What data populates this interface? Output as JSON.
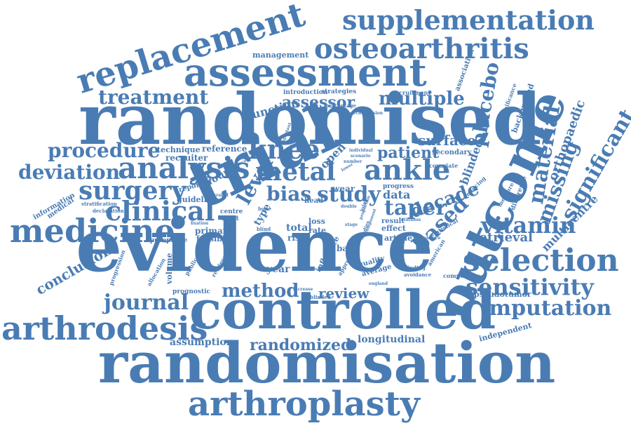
{
  "colors": {
    "word": "#4a7cb4",
    "background": "#ffffff"
  },
  "words": [
    "randomised",
    "evidence",
    "trial",
    "controlled",
    "randomisation",
    "outcome",
    "assessment",
    "replacement",
    "arthroplasty",
    "supplementation",
    "osteoarthritis",
    "arthrodesis",
    "medicine",
    "analysis",
    "metal",
    "ankle",
    "knee",
    "selection",
    "imputation",
    "sensitivity",
    "significant",
    "surgery",
    "clinical",
    "vitamin",
    "treatment",
    "procedure",
    "deviation",
    "journal",
    "method",
    "taper",
    "material",
    "placebo",
    "multiple",
    "based",
    "decade",
    "study",
    "bias",
    "level",
    "missing",
    "orthopaedic",
    "randomized",
    "patient",
    "surface",
    "assessor",
    "review",
    "retrieval",
    "conclusion",
    "assumption",
    "longitudinal",
    "multicentre",
    "pseudotumor",
    "independent",
    "junction",
    "management",
    "reference",
    "technique",
    "recruiter",
    "guideline",
    "group",
    "reported",
    "feasible",
    "primary",
    "appropriate",
    "volume",
    "year",
    "total",
    "type",
    "risk",
    "loss",
    "rate",
    "wear",
    "head",
    "data",
    "effect",
    "result",
    "article",
    "quality",
    "average",
    "approach",
    "influence",
    "base",
    "open",
    "blinded",
    "secondary",
    "covariate",
    "background",
    "significance",
    "association",
    "recruitment",
    "strategies",
    "introduction",
    "percentage",
    "medical",
    "information",
    "stratification",
    "declaration",
    "prognostic",
    "allocation",
    "progression",
    "publication",
    "retrieved",
    "label",
    "blind",
    "centre",
    "most",
    "bone",
    "compulsory",
    "difference",
    "measure",
    "reducing",
    "blinding",
    "avoidance",
    "american",
    "statistical",
    "enhance",
    "england",
    "unblinded",
    "increase",
    "economic",
    "important",
    "research",
    "decision",
    "number",
    "individual",
    "scenario",
    "lower",
    "double",
    "joint",
    "studies",
    "component",
    "proportion",
    "progress",
    "stiffness",
    "stage",
    "parallel",
    "fixation"
  ]
}
